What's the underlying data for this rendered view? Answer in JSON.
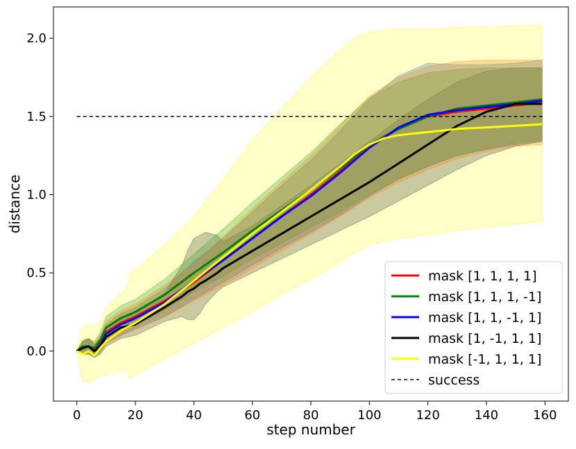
{
  "chart_data": {
    "type": "line",
    "title": "",
    "xlabel": "step number",
    "ylabel": "distance",
    "xlim": [
      -8,
      168
    ],
    "ylim": [
      -0.32,
      2.2
    ],
    "xticks": [
      0,
      20,
      40,
      60,
      80,
      100,
      120,
      140,
      160
    ],
    "yticks": [
      0.0,
      0.5,
      1.0,
      1.5,
      2.0
    ],
    "xtick_labels": [
      "0",
      "20",
      "40",
      "60",
      "80",
      "100",
      "120",
      "140",
      "160"
    ],
    "ytick_labels": [
      "0.0",
      "0.5",
      "1.0",
      "1.5",
      "2.0"
    ],
    "grid": false,
    "legend_position": "lower-right",
    "series": [
      {
        "name": "mask [1, 1, 1, 1]",
        "color": "#ff0000",
        "band_color": "#ff7f0e",
        "x": [
          0,
          2,
          4,
          6,
          8,
          10,
          15,
          20,
          30,
          40,
          50,
          60,
          70,
          80,
          90,
          100,
          110,
          120,
          130,
          140,
          150,
          159
        ],
        "mean": [
          0,
          0.02,
          0.03,
          0.01,
          0.05,
          0.12,
          0.18,
          0.22,
          0.32,
          0.44,
          0.58,
          0.72,
          0.86,
          1.0,
          1.15,
          1.32,
          1.42,
          1.5,
          1.53,
          1.55,
          1.57,
          1.59
        ],
        "lower": [
          0,
          -0.02,
          -0.02,
          -0.03,
          0.0,
          0.05,
          0.1,
          0.14,
          0.22,
          0.32,
          0.42,
          0.53,
          0.64,
          0.75,
          0.86,
          0.98,
          1.08,
          1.16,
          1.23,
          1.28,
          1.31,
          1.32
        ],
        "upper": [
          0,
          0.06,
          0.08,
          0.05,
          0.1,
          0.19,
          0.26,
          0.3,
          0.42,
          0.56,
          0.73,
          0.91,
          1.08,
          1.25,
          1.44,
          1.63,
          1.75,
          1.82,
          1.85,
          1.86,
          1.86,
          1.86
        ]
      },
      {
        "name": "mask [1, 1, 1, -1]",
        "color": "#008000",
        "band_color": "#2ca02c",
        "x": [
          0,
          2,
          4,
          6,
          8,
          10,
          15,
          20,
          30,
          40,
          50,
          60,
          70,
          80,
          90,
          100,
          110,
          120,
          130,
          140,
          150,
          159
        ],
        "mean": [
          0,
          0.03,
          0.03,
          0.02,
          0.07,
          0.15,
          0.21,
          0.25,
          0.36,
          0.5,
          0.63,
          0.77,
          0.9,
          1.03,
          1.17,
          1.32,
          1.42,
          1.5,
          1.55,
          1.57,
          1.59,
          1.61
        ],
        "lower": [
          0,
          -0.01,
          -0.01,
          -0.02,
          0.02,
          0.08,
          0.13,
          0.17,
          0.26,
          0.38,
          0.48,
          0.59,
          0.69,
          0.79,
          0.89,
          1.0,
          1.1,
          1.18,
          1.25,
          1.29,
          1.33,
          1.35
        ],
        "upper": [
          0,
          0.07,
          0.08,
          0.06,
          0.12,
          0.22,
          0.29,
          0.33,
          0.46,
          0.62,
          0.78,
          0.95,
          1.11,
          1.27,
          1.45,
          1.62,
          1.72,
          1.78,
          1.8,
          1.81,
          1.81,
          1.81
        ]
      },
      {
        "name": "mask [1, 1, -1, 1]",
        "color": "#0000ff",
        "band_color": "#1f77b4",
        "x": [
          0,
          2,
          4,
          6,
          8,
          10,
          15,
          20,
          30,
          40,
          50,
          60,
          70,
          80,
          90,
          100,
          110,
          120,
          130,
          140,
          150,
          159
        ],
        "mean": [
          0,
          0.02,
          0.03,
          0.0,
          0.04,
          0.11,
          0.17,
          0.21,
          0.31,
          0.45,
          0.58,
          0.72,
          0.86,
          0.99,
          1.14,
          1.3,
          1.43,
          1.51,
          1.54,
          1.56,
          1.58,
          1.6
        ],
        "lower": [
          0,
          -0.02,
          -0.02,
          -0.04,
          -0.01,
          0.05,
          0.1,
          0.14,
          0.22,
          0.33,
          0.44,
          0.55,
          0.66,
          0.76,
          0.87,
          0.99,
          1.1,
          1.18,
          1.25,
          1.29,
          1.32,
          1.34
        ],
        "upper": [
          0,
          0.06,
          0.08,
          0.04,
          0.09,
          0.17,
          0.24,
          0.28,
          0.4,
          0.57,
          0.72,
          0.89,
          1.06,
          1.22,
          1.41,
          1.61,
          1.76,
          1.84,
          1.83,
          1.83,
          1.84,
          1.86
        ]
      },
      {
        "name": "mask [1, -1, 1, 1]",
        "color": "#000000",
        "band_color": "#404040",
        "x": [
          0,
          2,
          4,
          6,
          8,
          10,
          15,
          20,
          30,
          36,
          38,
          40,
          42,
          44,
          48,
          50,
          60,
          70,
          80,
          90,
          100,
          110,
          120,
          130,
          140,
          150,
          159
        ],
        "mean": [
          0,
          0.02,
          0.03,
          0.0,
          0.03,
          0.09,
          0.15,
          0.17,
          0.28,
          0.35,
          0.38,
          0.4,
          0.43,
          0.45,
          0.5,
          0.53,
          0.64,
          0.75,
          0.86,
          0.97,
          1.08,
          1.2,
          1.32,
          1.44,
          1.53,
          1.58,
          1.58
        ],
        "lower": [
          0,
          -0.02,
          -0.02,
          -0.04,
          -0.02,
          0.03,
          0.08,
          0.1,
          0.19,
          0.22,
          0.2,
          0.2,
          0.24,
          0.3,
          0.38,
          0.41,
          0.5,
          0.59,
          0.68,
          0.77,
          0.86,
          0.96,
          1.06,
          1.16,
          1.25,
          1.31,
          1.34
        ],
        "upper": [
          0,
          0.06,
          0.08,
          0.04,
          0.08,
          0.15,
          0.22,
          0.24,
          0.37,
          0.55,
          0.65,
          0.72,
          0.74,
          0.76,
          0.74,
          0.7,
          0.8,
          0.93,
          1.06,
          1.2,
          1.34,
          1.48,
          1.61,
          1.72,
          1.79,
          1.81,
          1.81
        ]
      },
      {
        "name": "mask [-1, 1, 1, 1]",
        "color": "#ffff00",
        "band_color": "#ffff00",
        "x": [
          0,
          2,
          4,
          6,
          8,
          10,
          15,
          17,
          18,
          20,
          30,
          40,
          50,
          60,
          70,
          80,
          90,
          95,
          100,
          105,
          110,
          120,
          130,
          140,
          150,
          159
        ],
        "mean": [
          0,
          -0.02,
          0.0,
          -0.03,
          0.02,
          0.06,
          0.13,
          0.15,
          0.16,
          0.18,
          0.3,
          0.45,
          0.6,
          0.75,
          0.89,
          1.03,
          1.18,
          1.26,
          1.32,
          1.36,
          1.38,
          1.4,
          1.42,
          1.43,
          1.44,
          1.45
        ],
        "lower": [
          -0.02,
          -0.2,
          -0.2,
          -0.18,
          -0.16,
          -0.15,
          -0.13,
          -0.12,
          -0.18,
          -0.15,
          -0.05,
          0.05,
          0.15,
          0.25,
          0.36,
          0.46,
          0.57,
          0.63,
          0.68,
          0.7,
          0.72,
          0.74,
          0.77,
          0.79,
          0.81,
          0.83
        ],
        "upper": [
          0.02,
          0.15,
          0.17,
          0.15,
          0.2,
          0.28,
          0.37,
          0.4,
          0.5,
          0.52,
          0.68,
          0.86,
          1.1,
          1.35,
          1.55,
          1.75,
          1.93,
          2.0,
          2.04,
          2.05,
          2.06,
          2.06,
          2.07,
          2.07,
          2.08,
          2.08
        ]
      }
    ],
    "reference_line": {
      "name": "success",
      "y": 1.5,
      "x_start": 0,
      "x_end": 160,
      "style": "dashed",
      "color": "#000000"
    }
  }
}
